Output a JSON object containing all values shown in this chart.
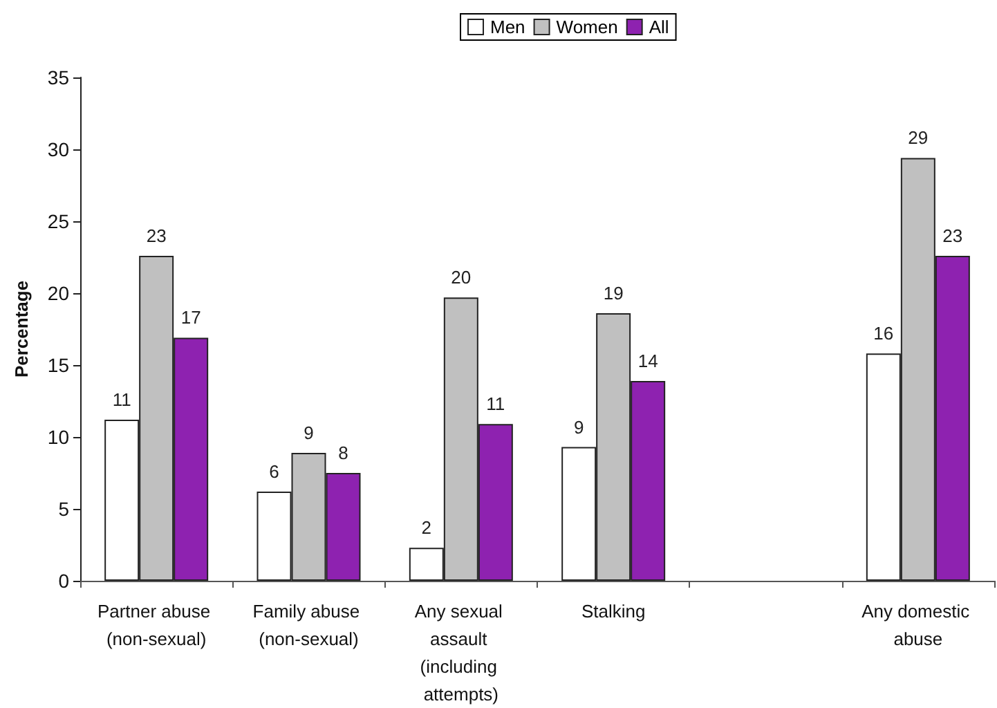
{
  "chart_data": {
    "type": "bar",
    "ylabel": "Percentage",
    "categories": [
      "Partner abuse (non-sexual)",
      "Family abuse (non-sexual)",
      "Any sexual assault (including attempts)",
      "Stalking",
      null,
      "Any domestic abuse"
    ],
    "series": [
      {
        "name": "Men",
        "color": "#ffffff",
        "values": [
          11.2,
          6.2,
          2.3,
          9.3,
          null,
          15.8
        ],
        "value_labels": [
          "11",
          "6",
          "2",
          "9",
          null,
          "16"
        ]
      },
      {
        "name": "Women",
        "color": "#c0c0c0",
        "values": [
          22.6,
          8.9,
          19.7,
          18.6,
          null,
          29.4
        ],
        "value_labels": [
          "23",
          "9",
          "20",
          "19",
          null,
          "29"
        ]
      },
      {
        "name": "All",
        "color": "#8e22b0",
        "values": [
          16.9,
          7.5,
          10.9,
          13.9,
          null,
          22.6
        ],
        "value_labels": [
          "17",
          "8",
          "11",
          "14",
          null,
          "23"
        ]
      }
    ],
    "ylim": [
      0,
      35
    ],
    "yticks": [
      0,
      5,
      10,
      15,
      20,
      25,
      30,
      35
    ],
    "grid": false,
    "legend": "top"
  }
}
